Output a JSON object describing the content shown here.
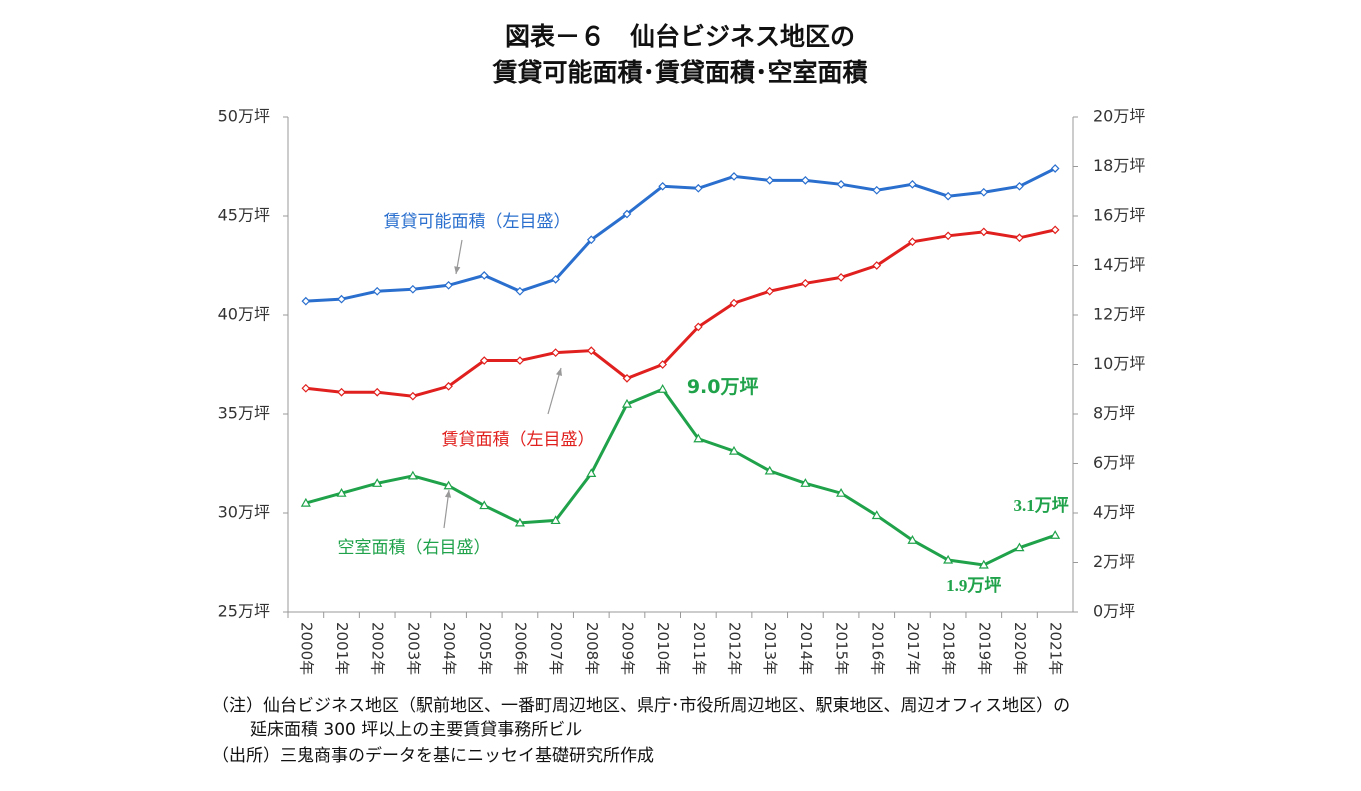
{
  "chart_data": {
    "type": "line",
    "title": "図表－６　仙台ビジネス地区の",
    "subtitle": "賃貸可能面積･賃貸面積･空室面積",
    "categories": [
      "2000年",
      "2001年",
      "2002年",
      "2003年",
      "2004年",
      "2005年",
      "2006年",
      "2007年",
      "2008年",
      "2009年",
      "2010年",
      "2011年",
      "2012年",
      "2013年",
      "2014年",
      "2015年",
      "2016年",
      "2017年",
      "2018年",
      "2019年",
      "2020年",
      "2021年"
    ],
    "series": [
      {
        "name": "賃貸可能面積（左目盛）",
        "color": "#2a6fce",
        "marker": "diamond",
        "values": [
          40.7,
          40.8,
          41.2,
          41.3,
          41.5,
          42.0,
          41.2,
          41.8,
          43.8,
          45.1,
          46.5,
          46.4,
          47.0,
          46.8,
          46.8,
          46.6,
          46.3,
          46.6,
          46.0,
          46.2,
          46.5,
          47.4
        ]
      },
      {
        "name": "賃貸面積（左目盛）",
        "color": "#e0201e",
        "marker": "diamond",
        "values": [
          36.3,
          36.1,
          36.1,
          35.9,
          36.4,
          37.7,
          37.7,
          38.1,
          38.2,
          36.8,
          37.5,
          39.4,
          40.6,
          41.2,
          41.6,
          41.9,
          42.5,
          43.7,
          44.0,
          44.2,
          43.9,
          44.3
        ]
      },
      {
        "name": "空室面積（右目盛）",
        "color": "#1fa24a",
        "marker": "triangle",
        "axis": "y2",
        "values": [
          4.4,
          4.8,
          5.2,
          5.5,
          5.1,
          4.3,
          3.6,
          3.7,
          5.6,
          8.4,
          9.0,
          7.0,
          6.5,
          5.7,
          5.2,
          4.8,
          3.9,
          2.9,
          2.1,
          1.9,
          2.6,
          3.1
        ],
        "value_labels": [
          null,
          null,
          null,
          null,
          null,
          null,
          null,
          null,
          null,
          null,
          "9.0万坪",
          null,
          null,
          null,
          null,
          null,
          null,
          null,
          null,
          "1.9万坪",
          null,
          "3.1万坪"
        ]
      }
    ],
    "ylim": [
      25,
      50
    ],
    "yticks": [
      {
        "value": 25,
        "label": "25万坪"
      },
      {
        "value": 30,
        "label": "30万坪"
      },
      {
        "value": 35,
        "label": "35万坪"
      },
      {
        "value": 40,
        "label": "40万坪"
      },
      {
        "value": 45,
        "label": "45万坪"
      },
      {
        "value": 50,
        "label": "50万坪"
      }
    ],
    "y2lim": [
      0,
      20
    ],
    "y2ticks": [
      {
        "value": 0,
        "label": "0万坪"
      },
      {
        "value": 2,
        "label": "2万坪"
      },
      {
        "value": 4,
        "label": "4万坪"
      },
      {
        "value": 6,
        "label": "6万坪"
      },
      {
        "value": 8,
        "label": "8万坪"
      },
      {
        "value": 10,
        "label": "10万坪"
      },
      {
        "value": 12,
        "label": "12万坪"
      },
      {
        "value": 14,
        "label": "14万坪"
      },
      {
        "value": 16,
        "label": "16万坪"
      },
      {
        "value": 18,
        "label": "18万坪"
      },
      {
        "value": 20,
        "label": "20万坪"
      }
    ],
    "grid": false,
    "notes": [
      "（注）仙台ビジネス地区（駅前地区、一番町周辺地区、県庁･市役所周辺地区、駅東地区、周辺オフィス地区）の",
      "延床面積 300 坪以上の主要賃貸事務所ビル",
      "（出所）三鬼商事のデータを基にニッセイ基礎研究所作成"
    ]
  }
}
